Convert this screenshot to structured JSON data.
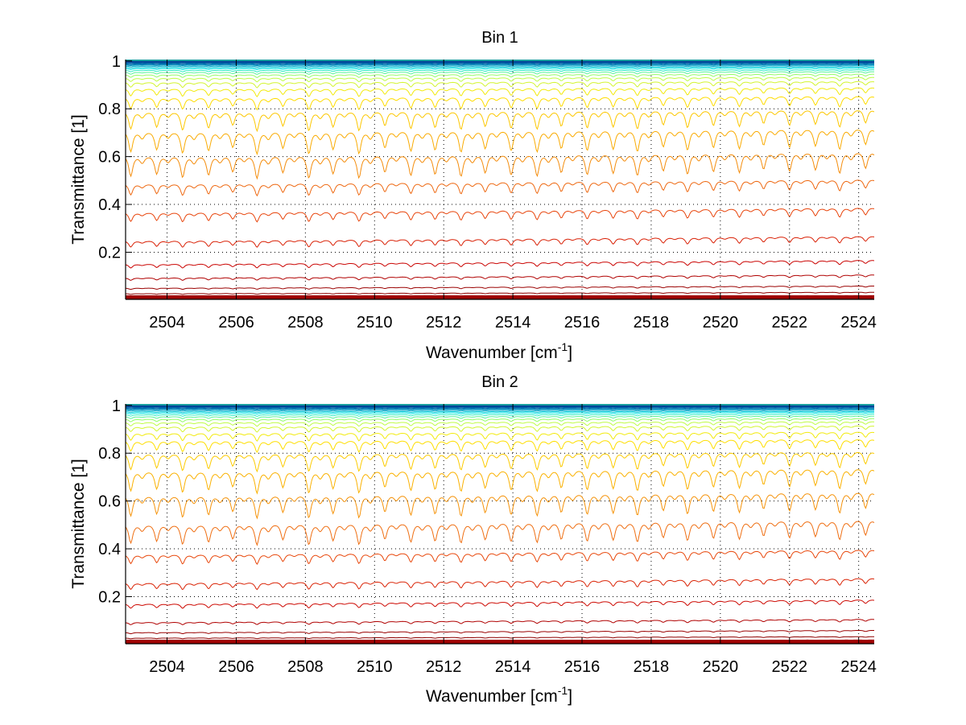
{
  "chart_data": [
    {
      "type": "line",
      "title": "Bin 1",
      "xlabel": "Wavenumber [cm",
      "xlabel_sup": "-1",
      "xlabel_end": "]",
      "ylabel": "Transmittance [1]",
      "xlim": [
        2502.8,
        2524.45
      ],
      "ylim": [
        0.003,
        1.006
      ],
      "xticks": [
        2504,
        2506,
        2508,
        2510,
        2512,
        2514,
        2516,
        2518,
        2520,
        2522,
        2524
      ],
      "yticks": [
        0.2,
        0.4,
        0.6,
        0.8,
        1
      ],
      "ytick_labels": [
        "0.2",
        "0.4",
        "0.6",
        "0.8",
        "1"
      ],
      "grid": "dotted",
      "series_levels": [
        0.999,
        0.997,
        0.995,
        0.993,
        0.99,
        0.987,
        0.984,
        0.98,
        0.975,
        0.97,
        0.963,
        0.955,
        0.945,
        0.932,
        0.915,
        0.89,
        0.855,
        0.8,
        0.72,
        0.62,
        0.5,
        0.38,
        0.26,
        0.16,
        0.1,
        0.055,
        0.03,
        0.015,
        0.008,
        0.004
      ],
      "series_drift": 0.06,
      "line_positions": [
        2502.95,
        2503.7,
        2504.45,
        2505.2,
        2505.9,
        2506.6,
        2507.35,
        2508.1,
        2508.8,
        2509.55,
        2510.3,
        2511.05,
        2511.75,
        2512.5,
        2513.2,
        2513.95,
        2514.7,
        2515.4,
        2516.15,
        2516.9,
        2517.6,
        2518.35,
        2519.05,
        2519.8,
        2520.55,
        2521.25,
        2522.0,
        2522.75,
        2523.45,
        2524.2
      ],
      "line_strengths": [
        0.9,
        0.8,
        0.95,
        0.85,
        0.7,
        1.0,
        0.75,
        1.0,
        0.8,
        1.0,
        0.75,
        0.9,
        0.85,
        0.95,
        0.8,
        0.9,
        0.95,
        0.8,
        0.9,
        0.85,
        0.95,
        0.75,
        0.9,
        0.8,
        0.85,
        0.7,
        0.8,
        0.75,
        0.9,
        0.7
      ]
    },
    {
      "type": "line",
      "title": "Bin 2",
      "xlabel": "Wavenumber [cm",
      "xlabel_sup": "-1",
      "xlabel_end": "]",
      "ylabel": "Transmittance [1]",
      "xlim": [
        2502.8,
        2524.45
      ],
      "ylim": [
        0.003,
        1.006
      ],
      "xticks": [
        2504,
        2506,
        2508,
        2510,
        2512,
        2514,
        2516,
        2518,
        2520,
        2522,
        2524
      ],
      "yticks": [
        0.2,
        0.4,
        0.6,
        0.8,
        1
      ],
      "ytick_labels": [
        "0.2",
        "0.4",
        "0.6",
        "0.8",
        "1"
      ],
      "grid": "dotted",
      "series_levels": [
        0.999,
        0.997,
        0.995,
        0.993,
        0.99,
        0.987,
        0.984,
        0.98,
        0.975,
        0.97,
        0.963,
        0.955,
        0.945,
        0.932,
        0.915,
        0.89,
        0.86,
        0.81,
        0.74,
        0.64,
        0.52,
        0.39,
        0.27,
        0.18,
        0.1,
        0.055,
        0.03,
        0.015,
        0.008,
        0.004
      ],
      "series_drift": 0.06,
      "line_positions": [
        2502.95,
        2503.7,
        2504.45,
        2505.2,
        2505.9,
        2506.6,
        2507.35,
        2508.1,
        2508.8,
        2509.55,
        2510.3,
        2511.05,
        2511.75,
        2512.5,
        2513.2,
        2513.95,
        2514.7,
        2515.4,
        2516.15,
        2516.9,
        2517.6,
        2518.35,
        2519.05,
        2519.8,
        2520.55,
        2521.25,
        2522.0,
        2522.75,
        2523.45,
        2524.2
      ],
      "line_strengths": [
        0.9,
        0.8,
        0.95,
        0.85,
        0.7,
        1.0,
        0.75,
        1.0,
        0.8,
        1.0,
        0.75,
        0.9,
        0.85,
        0.95,
        0.8,
        0.9,
        0.95,
        0.8,
        0.9,
        0.85,
        0.95,
        0.75,
        0.9,
        0.8,
        0.85,
        0.7,
        0.8,
        0.75,
        0.9,
        0.7
      ]
    }
  ]
}
